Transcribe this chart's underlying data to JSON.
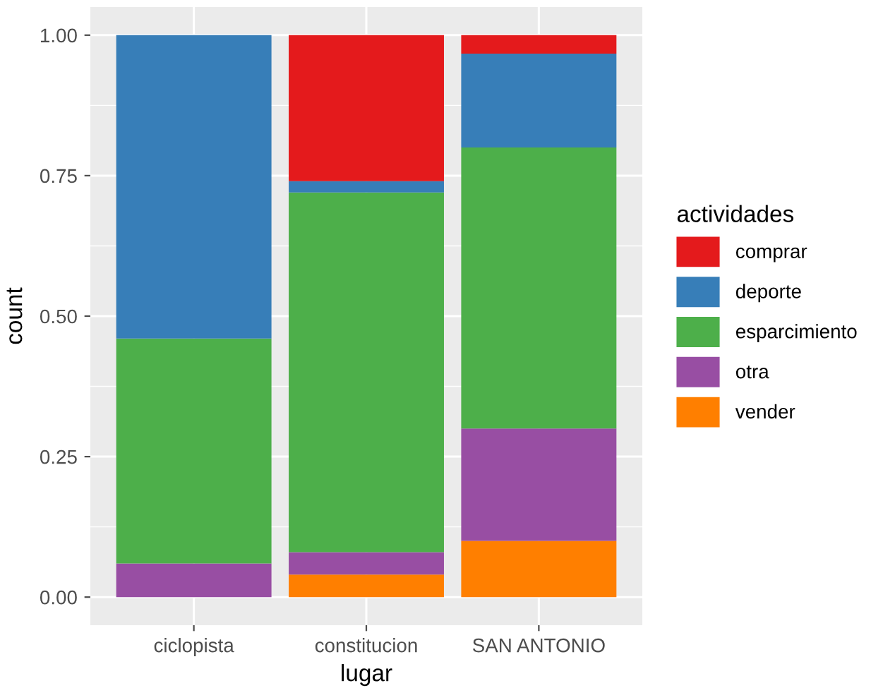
{
  "chart_data": {
    "type": "bar",
    "stacked": true,
    "xlabel": "lugar",
    "ylabel": "count",
    "legend_title": "actividades",
    "categories": [
      "ciclopista",
      "constitucion",
      "SAN ANTONIO"
    ],
    "series": [
      {
        "name": "vender",
        "color": "#ff7f00",
        "values": [
          0,
          0.04,
          0.1
        ]
      },
      {
        "name": "otra",
        "color": "#984ea3",
        "values": [
          0.06,
          0.04,
          0.2
        ]
      },
      {
        "name": "esparcimiento",
        "color": "#4daf4a",
        "values": [
          0.4,
          0.64,
          0.5
        ]
      },
      {
        "name": "deporte",
        "color": "#377eb8",
        "values": [
          0.54,
          0.02,
          0.167
        ]
      },
      {
        "name": "comprar",
        "color": "#e41a1c",
        "values": [
          0,
          0.26,
          0.033
        ]
      }
    ],
    "ylim": [
      -0.05,
      1.05
    ],
    "yticks": [
      {
        "value": 0,
        "label": "0.00"
      },
      {
        "value": 0.25,
        "label": "0.25"
      },
      {
        "value": 0.5,
        "label": "0.50"
      },
      {
        "value": 0.75,
        "label": "0.75"
      },
      {
        "value": 1,
        "label": "1.00"
      }
    ],
    "grid": true,
    "legend": "right"
  }
}
